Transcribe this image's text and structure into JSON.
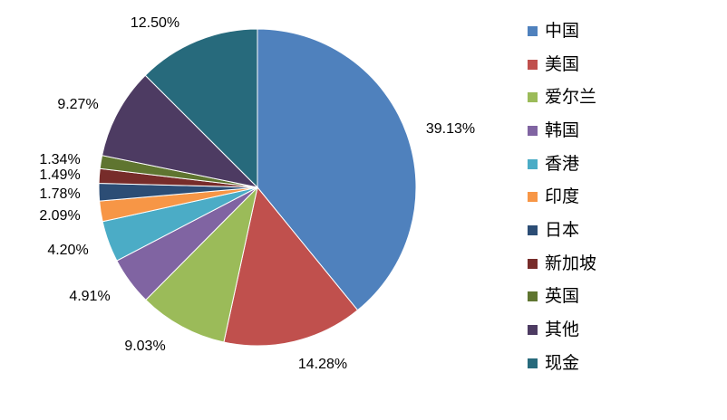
{
  "chart_data": {
    "type": "pie",
    "categories": [
      "中国",
      "美国",
      "爱尔兰",
      "韩国",
      "香港",
      "印度",
      "日本",
      "新加坡",
      "英国",
      "其他",
      "现金"
    ],
    "values": [
      39.13,
      14.28,
      9.03,
      4.91,
      4.2,
      2.09,
      1.78,
      1.49,
      1.34,
      9.27,
      12.5
    ],
    "labels": [
      "39.13%",
      "14.28%",
      "9.03%",
      "4.91%",
      "4.20%",
      "2.09%",
      "1.78%",
      "1.49%",
      "1.34%",
      "9.27%",
      "12.50%"
    ],
    "colors": [
      "#4F81BD",
      "#C0504D",
      "#9BBB59",
      "#8064A2",
      "#4BACC6",
      "#F79646",
      "#2C4D75",
      "#772C2A",
      "#5F7530",
      "#4D3B62",
      "#276A7C"
    ],
    "start": "12 o'clock",
    "direction": "clockwise",
    "legend": "right"
  }
}
